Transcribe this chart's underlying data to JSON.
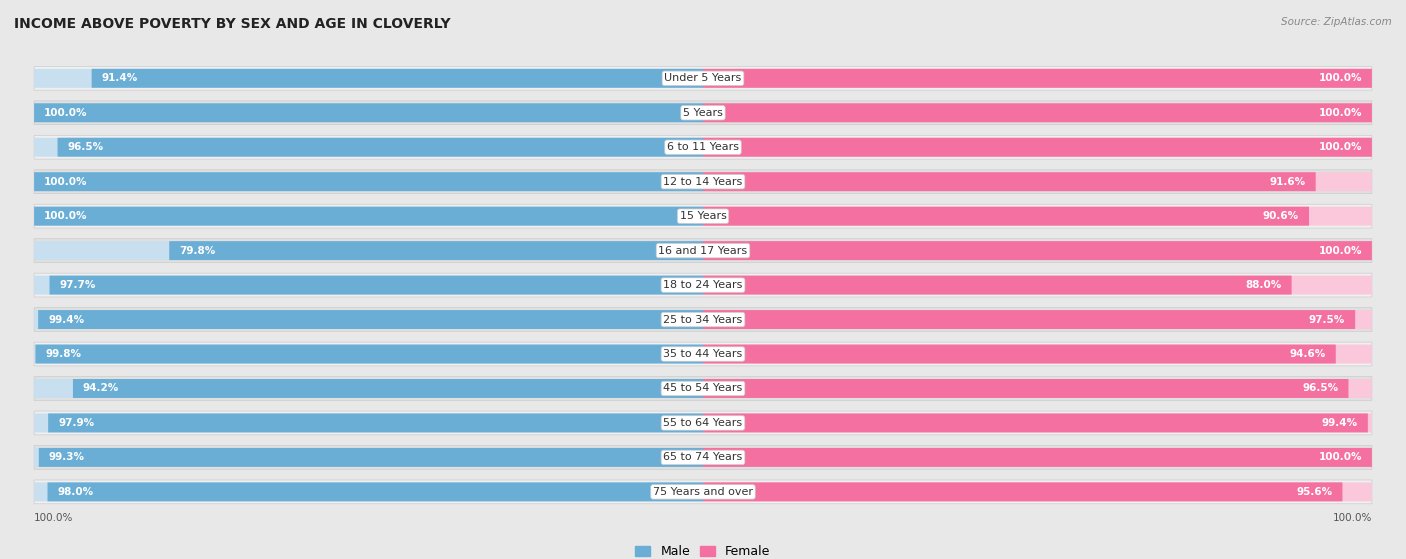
{
  "title": "INCOME ABOVE POVERTY BY SEX AND AGE IN CLOVERLY",
  "source": "Source: ZipAtlas.com",
  "categories": [
    "Under 5 Years",
    "5 Years",
    "6 to 11 Years",
    "12 to 14 Years",
    "15 Years",
    "16 and 17 Years",
    "18 to 24 Years",
    "25 to 34 Years",
    "35 to 44 Years",
    "45 to 54 Years",
    "55 to 64 Years",
    "65 to 74 Years",
    "75 Years and over"
  ],
  "male_values": [
    91.4,
    100.0,
    96.5,
    100.0,
    100.0,
    79.8,
    97.7,
    99.4,
    99.8,
    94.2,
    97.9,
    99.3,
    98.0
  ],
  "female_values": [
    100.0,
    100.0,
    100.0,
    91.6,
    90.6,
    100.0,
    88.0,
    97.5,
    94.6,
    96.5,
    99.4,
    100.0,
    95.6
  ],
  "male_color": "#6aaed6",
  "female_color": "#f470a0",
  "male_light": "#c8dff0",
  "female_light": "#fac8da",
  "row_bg_odd": "#e8e8e8",
  "row_bg_even": "#f5f5f5",
  "bg_color": "#e8e8e8",
  "title_fontsize": 10,
  "label_fontsize": 8,
  "value_fontsize": 7.5,
  "legend_fontsize": 9,
  "bottom_label_male": "100.0%",
  "bottom_label_female": "100.0%"
}
